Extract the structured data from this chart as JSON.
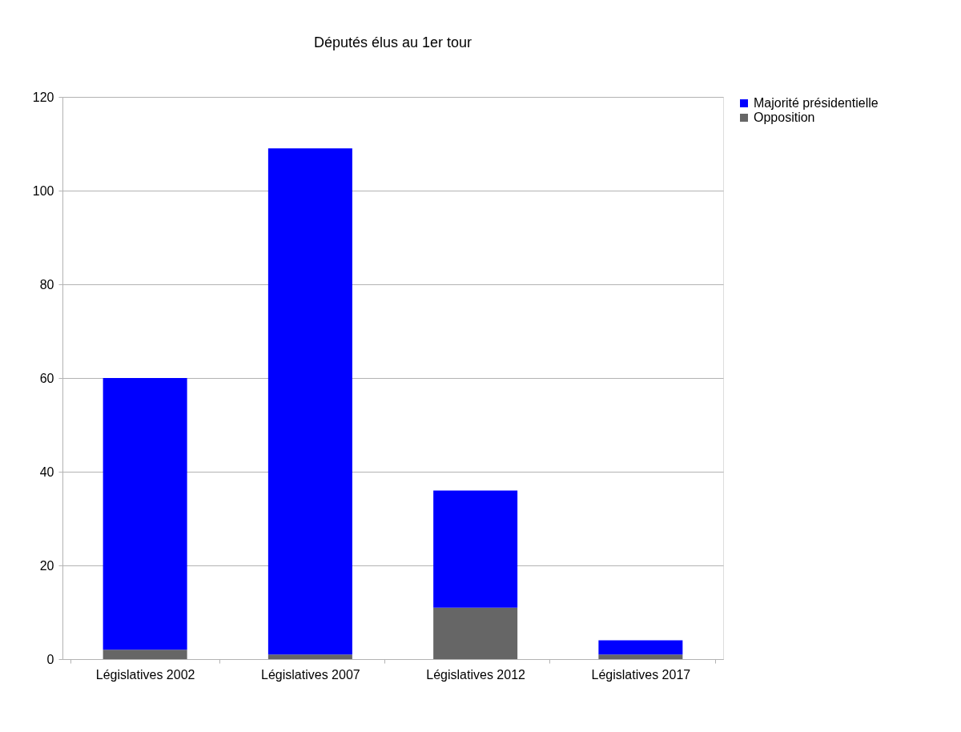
{
  "chart_data": {
    "type": "bar",
    "title": "Députés élus au 1er tour",
    "stacked": true,
    "categories": [
      "Législatives 2002",
      "Législatives 2007",
      "Législatives 2012",
      "Législatives 2017"
    ],
    "series": [
      {
        "name": "Opposition",
        "color": "#666666",
        "values": [
          2,
          1,
          11,
          1
        ]
      },
      {
        "name": "Majorité présidentielle",
        "color": "#0000ff",
        "values": [
          58,
          108,
          25,
          3
        ]
      }
    ],
    "ylim": [
      0,
      120
    ],
    "yticks": [
      0,
      20,
      40,
      60,
      80,
      100,
      120
    ],
    "grid": "y",
    "legend": "right"
  }
}
